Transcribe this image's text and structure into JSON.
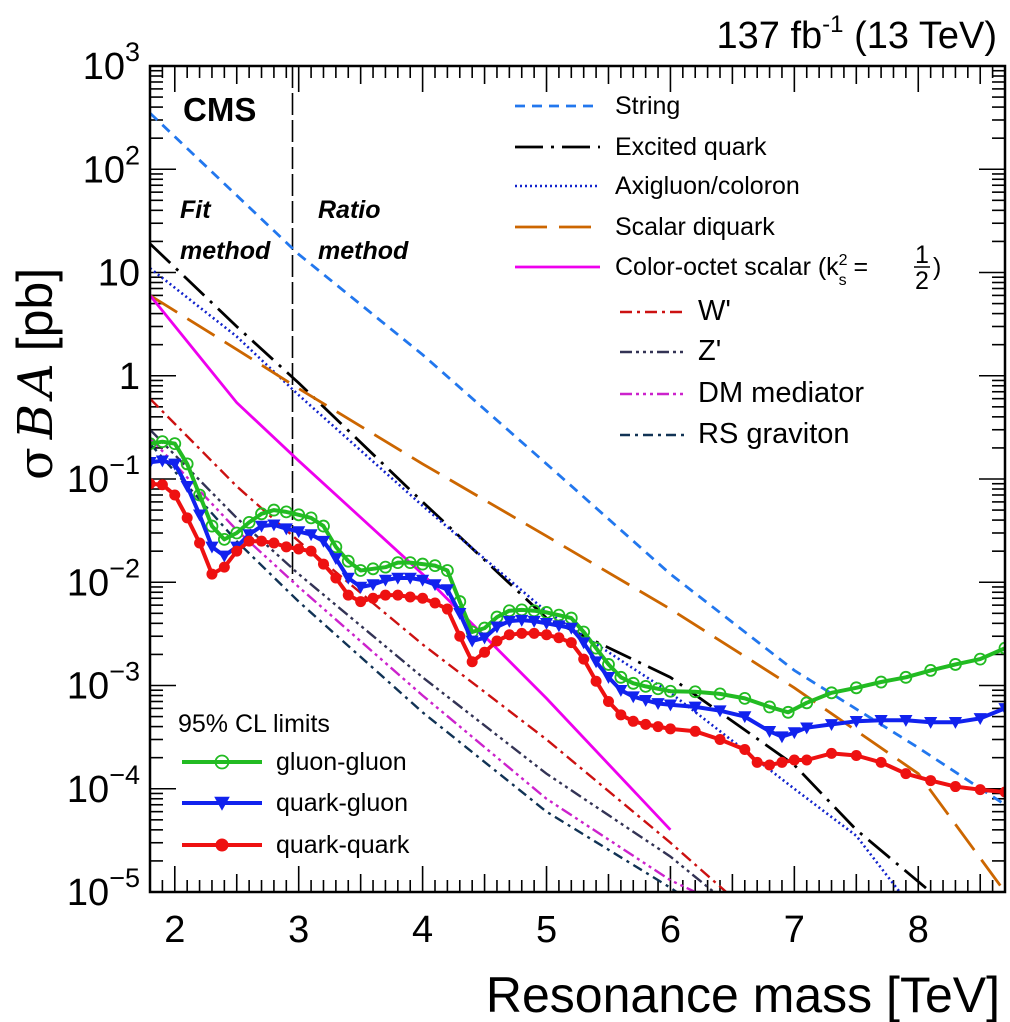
{
  "chart_data": {
    "type": "line",
    "lumi_label": "137 fb",
    "lumi_exp": "-1",
    "lumi_energy": " (13 TeV)",
    "experiment": "CMS",
    "region_labels": [
      {
        "line1": "Fit",
        "line2": "method"
      },
      {
        "line1": "Ratio",
        "line2": "method"
      }
    ],
    "region_boundary_tev": 2.95,
    "xlabel": "Resonance mass [TeV]",
    "ylabel": {
      "sigma": "σ",
      "B": "B",
      "A": "A",
      "unit": "[pb]"
    },
    "x_range": [
      1.8,
      8.7
    ],
    "y_range": [
      1e-05,
      1000
    ],
    "y_log": true,
    "x_ticks": [
      2,
      3,
      4,
      5,
      6,
      7,
      8
    ],
    "y_tick_labels": [
      {
        "v": 1000,
        "base": "10",
        "exp": "3"
      },
      {
        "v": 100,
        "base": "10",
        "exp": "2"
      },
      {
        "v": 10,
        "base": "10",
        "exp": ""
      },
      {
        "v": 1,
        "base": "1",
        "exp": ""
      },
      {
        "v": 0.1,
        "base": "10",
        "exp": "−1"
      },
      {
        "v": 0.01,
        "base": "10",
        "exp": "−2"
      },
      {
        "v": 0.001,
        "base": "10",
        "exp": "−3"
      },
      {
        "v": 0.0001,
        "base": "10",
        "exp": "−4"
      },
      {
        "v": 1e-05,
        "base": "10",
        "exp": "−5"
      }
    ],
    "limits_title": "95% CL limits",
    "limits": [
      {
        "name": "gluon-gluon",
        "color": "#22bb22",
        "marker": "open-circle",
        "points": [
          [
            1.8,
            0.22
          ],
          [
            1.9,
            0.23
          ],
          [
            2.0,
            0.22
          ],
          [
            2.1,
            0.14
          ],
          [
            2.2,
            0.07
          ],
          [
            2.3,
            0.035
          ],
          [
            2.4,
            0.026
          ],
          [
            2.5,
            0.03
          ],
          [
            2.6,
            0.038
          ],
          [
            2.7,
            0.046
          ],
          [
            2.8,
            0.05
          ],
          [
            2.9,
            0.048
          ],
          [
            3.0,
            0.045
          ],
          [
            3.1,
            0.042
          ],
          [
            3.2,
            0.035
          ],
          [
            3.3,
            0.022
          ],
          [
            3.4,
            0.016
          ],
          [
            3.5,
            0.013
          ],
          [
            3.6,
            0.0135
          ],
          [
            3.7,
            0.014
          ],
          [
            3.8,
            0.0155
          ],
          [
            3.9,
            0.0155
          ],
          [
            4.0,
            0.015
          ],
          [
            4.1,
            0.0145
          ],
          [
            4.2,
            0.013
          ],
          [
            4.3,
            0.0065
          ],
          [
            4.4,
            0.0033
          ],
          [
            4.5,
            0.0036
          ],
          [
            4.6,
            0.0046
          ],
          [
            4.7,
            0.0053
          ],
          [
            4.8,
            0.0054
          ],
          [
            4.9,
            0.0053
          ],
          [
            5.0,
            0.0051
          ],
          [
            5.1,
            0.0048
          ],
          [
            5.2,
            0.0045
          ],
          [
            5.3,
            0.0033
          ],
          [
            5.4,
            0.0023
          ],
          [
            5.5,
            0.0016
          ],
          [
            5.6,
            0.0012
          ],
          [
            5.7,
            0.00105
          ],
          [
            5.8,
            0.00098
          ],
          [
            5.9,
            0.00093
          ],
          [
            6.0,
            0.00088
          ],
          [
            6.2,
            0.00087
          ],
          [
            6.4,
            0.00083
          ],
          [
            6.6,
            0.00075
          ],
          [
            6.8,
            0.00062
          ],
          [
            6.95,
            0.00055
          ],
          [
            7.1,
            0.00068
          ],
          [
            7.3,
            0.00085
          ],
          [
            7.5,
            0.00095
          ],
          [
            7.7,
            0.00108
          ],
          [
            7.9,
            0.0012
          ],
          [
            8.1,
            0.0014
          ],
          [
            8.3,
            0.0016
          ],
          [
            8.5,
            0.0018
          ],
          [
            8.7,
            0.0023
          ]
        ]
      },
      {
        "name": "quark-gluon",
        "color": "#1122ee",
        "marker": "down-triangle",
        "points": [
          [
            1.8,
            0.145
          ],
          [
            1.9,
            0.15
          ],
          [
            2.0,
            0.14
          ],
          [
            2.1,
            0.085
          ],
          [
            2.2,
            0.045
          ],
          [
            2.3,
            0.022
          ],
          [
            2.4,
            0.018
          ],
          [
            2.5,
            0.022
          ],
          [
            2.6,
            0.029
          ],
          [
            2.7,
            0.035
          ],
          [
            2.8,
            0.036
          ],
          [
            2.9,
            0.033
          ],
          [
            3.0,
            0.031
          ],
          [
            3.1,
            0.029
          ],
          [
            3.2,
            0.025
          ],
          [
            3.3,
            0.017
          ],
          [
            3.4,
            0.011
          ],
          [
            3.5,
            0.009
          ],
          [
            3.6,
            0.0095
          ],
          [
            3.7,
            0.0105
          ],
          [
            3.8,
            0.011
          ],
          [
            3.9,
            0.011
          ],
          [
            4.0,
            0.0105
          ],
          [
            4.1,
            0.0095
          ],
          [
            4.2,
            0.0085
          ],
          [
            4.3,
            0.005
          ],
          [
            4.4,
            0.0027
          ],
          [
            4.5,
            0.0029
          ],
          [
            4.6,
            0.0037
          ],
          [
            4.7,
            0.0042
          ],
          [
            4.8,
            0.0043
          ],
          [
            4.9,
            0.0042
          ],
          [
            5.0,
            0.004
          ],
          [
            5.1,
            0.0038
          ],
          [
            5.2,
            0.0036
          ],
          [
            5.3,
            0.0026
          ],
          [
            5.4,
            0.0017
          ],
          [
            5.5,
            0.0012
          ],
          [
            5.6,
            0.0009
          ],
          [
            5.7,
            0.00078
          ],
          [
            5.8,
            0.00072
          ],
          [
            5.9,
            0.00067
          ],
          [
            6.0,
            0.00065
          ],
          [
            6.2,
            0.00062
          ],
          [
            6.4,
            0.00057
          ],
          [
            6.6,
            0.0005
          ],
          [
            6.8,
            0.00036
          ],
          [
            6.9,
            0.00032
          ],
          [
            7.0,
            0.00035
          ],
          [
            7.1,
            0.00039
          ],
          [
            7.3,
            0.00042
          ],
          [
            7.5,
            0.00045
          ],
          [
            7.7,
            0.00046
          ],
          [
            7.9,
            0.00046
          ],
          [
            8.1,
            0.00044
          ],
          [
            8.3,
            0.00044
          ],
          [
            8.5,
            0.00048
          ],
          [
            8.7,
            0.0006
          ]
        ]
      },
      {
        "name": "quark-quark",
        "color": "#ee1111",
        "marker": "filled-circle",
        "points": [
          [
            1.8,
            0.09
          ],
          [
            1.9,
            0.088
          ],
          [
            2.0,
            0.07
          ],
          [
            2.1,
            0.042
          ],
          [
            2.2,
            0.024
          ],
          [
            2.3,
            0.012
          ],
          [
            2.4,
            0.014
          ],
          [
            2.5,
            0.02
          ],
          [
            2.6,
            0.025
          ],
          [
            2.7,
            0.025
          ],
          [
            2.8,
            0.024
          ],
          [
            2.9,
            0.022
          ],
          [
            3.0,
            0.021
          ],
          [
            3.1,
            0.02
          ],
          [
            3.2,
            0.015
          ],
          [
            3.3,
            0.011
          ],
          [
            3.4,
            0.0075
          ],
          [
            3.5,
            0.0065
          ],
          [
            3.6,
            0.007
          ],
          [
            3.7,
            0.0075
          ],
          [
            3.8,
            0.0075
          ],
          [
            3.9,
            0.0072
          ],
          [
            4.0,
            0.007
          ],
          [
            4.1,
            0.0063
          ],
          [
            4.2,
            0.0055
          ],
          [
            4.3,
            0.003
          ],
          [
            4.4,
            0.0017
          ],
          [
            4.5,
            0.0021
          ],
          [
            4.6,
            0.0027
          ],
          [
            4.7,
            0.0031
          ],
          [
            4.8,
            0.0032
          ],
          [
            4.9,
            0.0032
          ],
          [
            5.0,
            0.0031
          ],
          [
            5.1,
            0.0029
          ],
          [
            5.2,
            0.0026
          ],
          [
            5.3,
            0.0018
          ],
          [
            5.4,
            0.0011
          ],
          [
            5.5,
            0.0007
          ],
          [
            5.6,
            0.00052
          ],
          [
            5.7,
            0.00045
          ],
          [
            5.8,
            0.00042
          ],
          [
            5.9,
            0.0004
          ],
          [
            6.0,
            0.00038
          ],
          [
            6.2,
            0.00036
          ],
          [
            6.4,
            0.0003
          ],
          [
            6.6,
            0.00024
          ],
          [
            6.7,
            0.00018
          ],
          [
            6.8,
            0.00017
          ],
          [
            6.9,
            0.00018
          ],
          [
            7.0,
            0.00019
          ],
          [
            7.1,
            0.00019
          ],
          [
            7.3,
            0.00022
          ],
          [
            7.5,
            0.00021
          ],
          [
            7.7,
            0.00018
          ],
          [
            7.9,
            0.00014
          ],
          [
            8.1,
            0.00012
          ],
          [
            8.3,
            0.000105
          ],
          [
            8.5,
            9.8e-05
          ],
          [
            8.7,
            9.3e-05
          ]
        ]
      }
    ],
    "models": [
      {
        "name": "String",
        "color": "#2277ee",
        "dash": "10 7",
        "width": 2.8,
        "points": [
          [
            1.8,
            350
          ],
          [
            3.0,
            15
          ],
          [
            4.0,
            1.6
          ],
          [
            5.0,
            0.14
          ],
          [
            6.0,
            0.012
          ],
          [
            7.0,
            0.0014
          ],
          [
            8.0,
            0.00025
          ],
          [
            8.7,
            7e-05
          ]
        ]
      },
      {
        "name": "Excited quark",
        "color": "#000000",
        "dash": "28 8 3 8",
        "width": 2.8,
        "points": [
          [
            1.8,
            19
          ],
          [
            2.5,
            3
          ],
          [
            3.0,
            0.85
          ],
          [
            4.0,
            0.06
          ],
          [
            5.0,
            0.0045
          ],
          [
            6.0,
            0.0012
          ],
          [
            7.0,
            0.00017
          ],
          [
            7.5,
            4e-05
          ],
          [
            8.1,
            1e-05
          ]
        ]
      },
      {
        "name": "Axigluon/coloron",
        "color": "#1122cc",
        "dash": "2 3",
        "width": 2.6,
        "points": [
          [
            1.8,
            11
          ],
          [
            2.5,
            2.4
          ],
          [
            3.0,
            0.65
          ],
          [
            4.0,
            0.055
          ],
          [
            5.0,
            0.0052
          ],
          [
            6.0,
            0.00085
          ],
          [
            7.0,
            0.0001
          ],
          [
            7.5,
            3.5e-05
          ],
          [
            7.85,
            1e-05
          ]
        ]
      },
      {
        "name": "Scalar diquark",
        "color": "#cc6600",
        "dash": "32 12",
        "width": 2.8,
        "points": [
          [
            1.8,
            6
          ],
          [
            2.5,
            1.8
          ],
          [
            3.0,
            0.75
          ],
          [
            4.0,
            0.14
          ],
          [
            5.0,
            0.028
          ],
          [
            6.0,
            0.0055
          ],
          [
            7.0,
            0.00095
          ],
          [
            8.0,
            0.00014
          ],
          [
            8.7,
            1e-05
          ]
        ]
      },
      {
        "name": "Color-octet scalar",
        "color": "#ee00ee",
        "dash": "",
        "width": 2.8,
        "points": [
          [
            1.8,
            6
          ],
          [
            2.5,
            0.55
          ],
          [
            3.0,
            0.15
          ],
          [
            4.0,
            0.012
          ],
          [
            5.0,
            0.00075
          ],
          [
            6.0,
            4e-05
          ]
        ]
      },
      {
        "name": "W'",
        "color": "#cc1111",
        "dash": "12 5 3 5",
        "width": 2.4,
        "points": [
          [
            1.8,
            0.6
          ],
          [
            2.5,
            0.085
          ],
          [
            3.0,
            0.025
          ],
          [
            4.0,
            0.0025
          ],
          [
            5.0,
            0.0003
          ],
          [
            6.0,
            3e-05
          ],
          [
            6.45,
            1e-05
          ]
        ]
      },
      {
        "name": "Z'",
        "color": "#333355",
        "dash": "12 4 3 4 3 4 3 4",
        "width": 2.4,
        "points": [
          [
            1.8,
            0.3
          ],
          [
            2.5,
            0.042
          ],
          [
            3.0,
            0.012
          ],
          [
            4.0,
            0.0012
          ],
          [
            5.0,
            0.00014
          ],
          [
            6.0,
            2.2e-05
          ],
          [
            6.35,
            1e-05
          ]
        ]
      },
      {
        "name": "DM mediator",
        "color": "#cc22cc",
        "dash": "12 4 3 4 3 4 3 4",
        "width": 2.4,
        "points": [
          [
            1.8,
            0.25
          ],
          [
            2.5,
            0.032
          ],
          [
            3.0,
            0.009
          ],
          [
            4.0,
            0.0008
          ],
          [
            5.0,
            8e-05
          ],
          [
            6.0,
            1.3e-05
          ],
          [
            6.2,
            1e-05
          ]
        ]
      },
      {
        "name": "RS graviton",
        "color": "#113355",
        "dash": "10 5 3 5",
        "width": 2.4,
        "points": [
          [
            1.8,
            0.22
          ],
          [
            2.5,
            0.025
          ],
          [
            3.0,
            0.0065
          ],
          [
            4.0,
            0.00055
          ],
          [
            5.0,
            6e-05
          ],
          [
            6.0,
            1.1e-05
          ],
          [
            6.05,
            1e-05
          ]
        ]
      }
    ],
    "color_octet_label": {
      "prefix": "Color-octet scalar (k",
      "sup": "2",
      "sub": "s",
      "eq": " = ",
      "num": "1",
      "den": "2",
      "close": ")"
    }
  }
}
